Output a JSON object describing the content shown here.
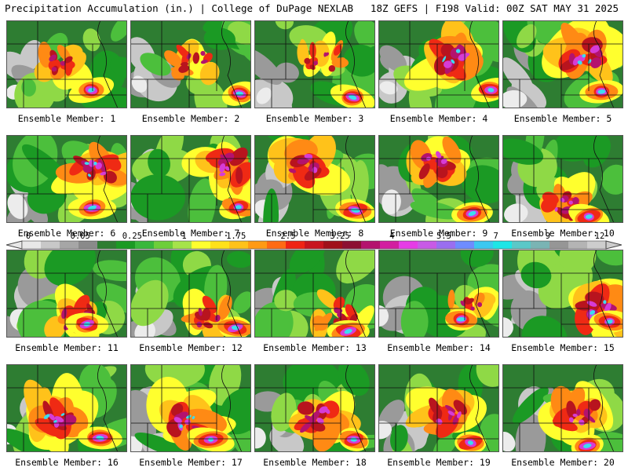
{
  "header": {
    "title": "Precipitation Accumulation (in.) | College of DuPage NEXLAB",
    "run_info": "18Z GEFS | F198 Valid: 00Z SAT MAY 31 2025"
  },
  "members": [
    {
      "label": "Ensemble Member: 1"
    },
    {
      "label": "Ensemble Member: 2"
    },
    {
      "label": "Ensemble Member: 3"
    },
    {
      "label": "Ensemble Member: 4"
    },
    {
      "label": "Ensemble Member: 5"
    },
    {
      "label": "Ensemble Member: 6"
    },
    {
      "label": "Ensemble Member: 7"
    },
    {
      "label": "Ensemble Member: 8"
    },
    {
      "label": "Ensemble Member: 9"
    },
    {
      "label": "Ensemble Member: 10"
    },
    {
      "label": "Ensemble Member: 11"
    },
    {
      "label": "Ensemble Member: 12"
    },
    {
      "label": "Ensemble Member: 13"
    },
    {
      "label": "Ensemble Member: 14"
    },
    {
      "label": "Ensemble Member: 15"
    },
    {
      "label": "Ensemble Member: 16"
    },
    {
      "label": "Ensemble Member: 17"
    },
    {
      "label": "Ensemble Member: 18"
    },
    {
      "label": "Ensemble Member: 19"
    },
    {
      "label": "Ensemble Member: 20"
    }
  ],
  "colorbar": {
    "labels": [
      "0",
      "0.05",
      "0.25",
      "1",
      "1.75",
      "2.5",
      "3.25",
      "4",
      "5.5",
      "7",
      "9",
      "12"
    ],
    "colors": [
      "#e8e8e8",
      "#c8c8c8",
      "#a6a6a6",
      "#8a8a8a",
      "#2e7d32",
      "#1b9a24",
      "#39b83c",
      "#6dcf3a",
      "#a6e34a",
      "#ffff2e",
      "#ffe11a",
      "#ffc21a",
      "#ff9a14",
      "#ff6a14",
      "#f02314",
      "#c8141e",
      "#a0101a",
      "#8c1032",
      "#b4126e",
      "#d21ea0",
      "#e63ce6",
      "#c85ae6",
      "#9a6ef0",
      "#6e8cff",
      "#3cc8f0",
      "#1ee6e6",
      "#5ac8c8",
      "#7ab4b4",
      "#969696",
      "#b4b4b4",
      "#cdcdcd"
    ]
  }
}
